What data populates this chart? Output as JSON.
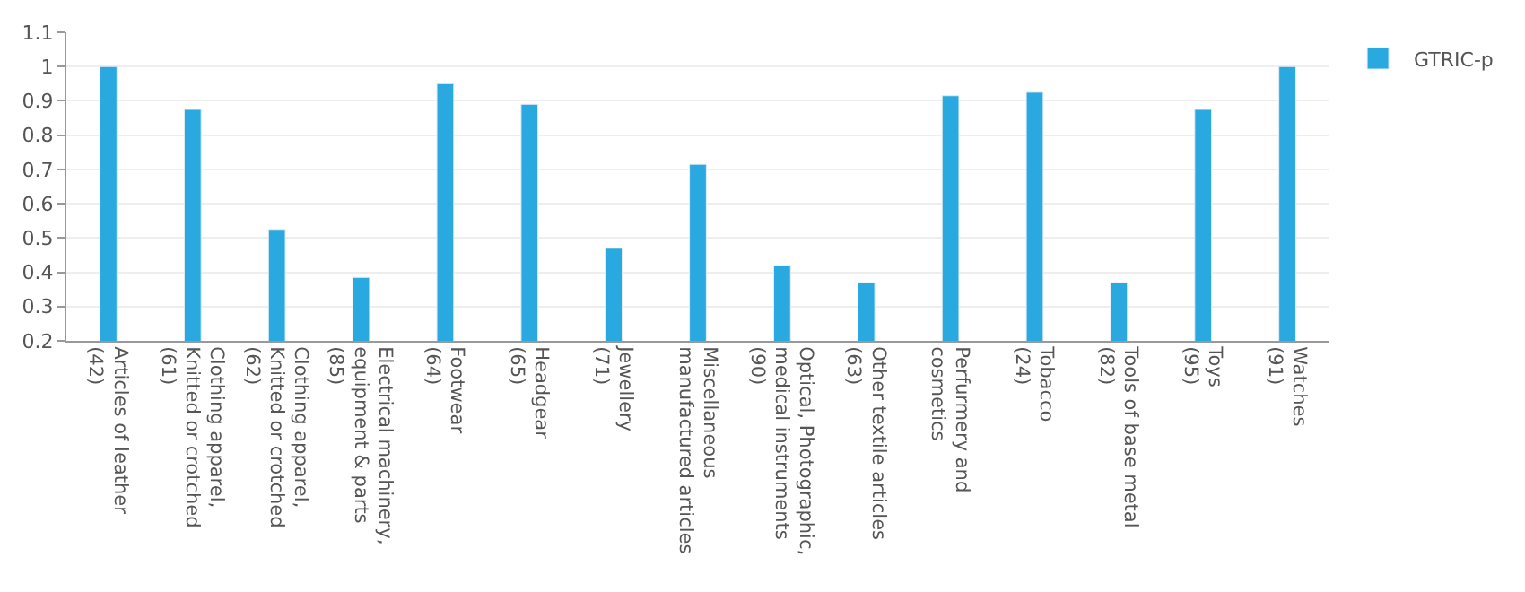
{
  "chart_data": {
    "type": "bar",
    "categories": [
      "Articles of leather\n(42)",
      "Clothing apparel,\nKnitted or crotched\n(61)",
      "Clothing apparel,\nKnitted or crotched\n(62)",
      "Electrical machinery,\nequipment & parts\n(85)",
      "Footwear\n(64)",
      "Headgear\n(65)",
      "Jewellery\n(71)",
      "Miscellaneous\nmanufactured articles",
      "Optical, Photographic,\nmedical instruments\n(90)",
      "Other textile articles\n(63)",
      "Perfurmery and\ncosmetics",
      "Tobacco\n(24)",
      "Tools of base metal\n(82)",
      "Toys\n(95)",
      "Watches\n(91)"
    ],
    "series": [
      {
        "name": "GTRIC-p",
        "color": "#29a9df",
        "values": [
          1.0,
          0.875,
          0.525,
          0.385,
          0.95,
          0.89,
          0.47,
          0.715,
          0.42,
          0.37,
          0.915,
          0.925,
          0.37,
          0.875,
          1.0
        ]
      }
    ],
    "ylim": [
      0.2,
      1.1
    ],
    "yticks": [
      0.2,
      0.3,
      0.4,
      0.5,
      0.6,
      0.7,
      0.8,
      0.9,
      1,
      1.1
    ],
    "grid": "y",
    "legend": "top right"
  }
}
